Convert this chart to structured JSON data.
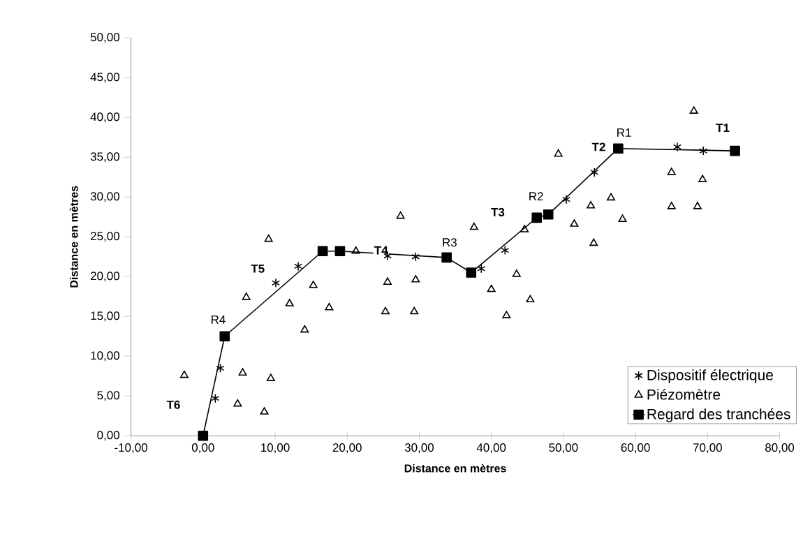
{
  "chart_data": {
    "type": "scatter",
    "xlabel": "Distance en mètres",
    "ylabel": "Distance en mètres",
    "xlim": [
      -10,
      80
    ],
    "ylim": [
      0,
      50
    ],
    "xticks": [
      {
        "value": -10,
        "label": "-10,00"
      },
      {
        "value": 0,
        "label": "0,00"
      },
      {
        "value": 10,
        "label": "10,00"
      },
      {
        "value": 20,
        "label": "20,00"
      },
      {
        "value": 30,
        "label": "30,00"
      },
      {
        "value": 40,
        "label": "40,00"
      },
      {
        "value": 50,
        "label": "50,00"
      },
      {
        "value": 60,
        "label": "60,00"
      },
      {
        "value": 70,
        "label": "70,00"
      },
      {
        "value": 80,
        "label": "80,00"
      }
    ],
    "yticks": [
      {
        "value": 0,
        "label": "0,00"
      },
      {
        "value": 5,
        "label": "5,00"
      },
      {
        "value": 10,
        "label": "10,00"
      },
      {
        "value": 15,
        "label": "15,00"
      },
      {
        "value": 20,
        "label": "20,00"
      },
      {
        "value": 25,
        "label": "25,00"
      },
      {
        "value": 30,
        "label": "30,00"
      },
      {
        "value": 35,
        "label": "35,00"
      },
      {
        "value": 40,
        "label": "40,00"
      },
      {
        "value": 45,
        "label": "45,00"
      },
      {
        "value": 50,
        "label": "50,00"
      }
    ],
    "legend": "bottom right",
    "grid": false,
    "series": [
      {
        "name": "Dispositif électrique",
        "marker": "cross",
        "color": "#000000",
        "x": [
          1.7,
          2.4,
          10.1,
          13.2,
          25.6,
          29.5,
          38.6,
          41.9,
          50.4,
          54.3,
          65.8,
          69.4
        ],
        "values": [
          4.7,
          8.5,
          19.2,
          21.3,
          22.6,
          22.5,
          21.0,
          23.3,
          29.7,
          33.1,
          36.3,
          35.8
        ]
      },
      {
        "name": "Piézomètre",
        "marker": "triangle",
        "color": "#000000",
        "x": [
          -2.6,
          5.5,
          4.8,
          8.5,
          9.4,
          6.0,
          9.1,
          12.0,
          14.1,
          15.3,
          17.5,
          21.2,
          27.4,
          25.6,
          29.5,
          25.3,
          29.3,
          37.6,
          40.0,
          43.5,
          42.1,
          45.4,
          44.6,
          49.3,
          51.5,
          53.8,
          54.2,
          56.6,
          58.2,
          68.1,
          65.0,
          65.0,
          69.3,
          68.6
        ],
        "values": [
          7.6,
          7.9,
          4.0,
          3.0,
          7.2,
          17.4,
          24.7,
          16.6,
          13.3,
          18.9,
          16.1,
          23.2,
          27.6,
          19.3,
          19.6,
          15.6,
          15.6,
          26.2,
          18.4,
          20.3,
          15.1,
          17.1,
          25.9,
          35.4,
          26.6,
          28.9,
          24.2,
          29.9,
          27.2,
          40.8,
          33.1,
          28.8,
          32.2,
          28.8
        ]
      },
      {
        "name": "Regard des tranchées",
        "type": "line",
        "marker": "square",
        "line_style": "solid",
        "color": "#000000",
        "x": [
          0,
          3.0,
          16.6,
          19.0,
          33.8,
          37.2,
          46.3,
          47.9,
          57.6,
          73.8
        ],
        "values": [
          0,
          12.5,
          23.2,
          23.2,
          22.4,
          20.5,
          27.4,
          27.8,
          36.1,
          35.8
        ]
      }
    ],
    "annotations": [
      {
        "text": "**T6**",
        "x": -4.1,
        "y": 3.9
      },
      {
        "text": "**T5**",
        "x": 7.6,
        "y": 21.0
      },
      {
        "text": "**T4**",
        "x": 24.7,
        "y": 23.3
      },
      {
        "text": "**T3**",
        "x": 40.9,
        "y": 28.1
      },
      {
        "text": "**T2**",
        "x": 54.9,
        "y": 36.3
      },
      {
        "text": "**T1**",
        "x": 72.1,
        "y": 38.7
      },
      {
        "text": "R4",
        "x": 2.1,
        "y": 14.6
      },
      {
        "text": "R3",
        "x": 34.2,
        "y": 24.3
      },
      {
        "text": "R2",
        "x": 46.2,
        "y": 30.1
      },
      {
        "text": "R1",
        "x": 58.4,
        "y": 38.1
      }
    ]
  }
}
